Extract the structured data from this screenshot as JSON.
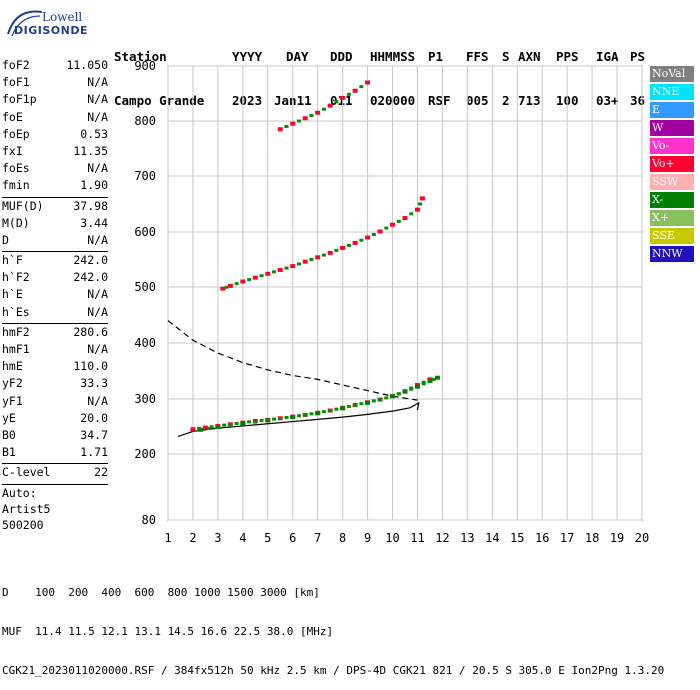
{
  "logo": {
    "line1": "Lowell",
    "line2": "DIGISONDE"
  },
  "header": {
    "labels": [
      "Station",
      "YYYY",
      "DAY",
      "DDD",
      "HHMMSS",
      "P1",
      "FFS",
      "S",
      "AXN",
      "PPS",
      "IGA",
      "PS"
    ],
    "values": [
      "Campo Grande",
      "2023",
      "Jan11",
      "011",
      "020000",
      "RSF",
      "005",
      "2",
      "713",
      "100",
      "03+",
      "36"
    ]
  },
  "params_group1": [
    {
      "k": "foF2",
      "v": "11.050"
    },
    {
      "k": "foF1",
      "v": "N/A"
    },
    {
      "k": "foF1p",
      "v": "N/A"
    },
    {
      "k": "foE",
      "v": "N/A"
    },
    {
      "k": "foEp",
      "v": "0.53"
    },
    {
      "k": "fxI",
      "v": "11.35"
    },
    {
      "k": "foEs",
      "v": "N/A"
    },
    {
      "k": "fmin",
      "v": "1.90"
    }
  ],
  "params_group2": [
    {
      "k": "MUF(D)",
      "v": "37.98"
    },
    {
      "k": "M(D)",
      "v": "3.44"
    },
    {
      "k": "D",
      "v": "N/A"
    }
  ],
  "params_group3": [
    {
      "k": "h`F",
      "v": "242.0"
    },
    {
      "k": "h`F2",
      "v": "242.0"
    },
    {
      "k": "h`E",
      "v": "N/A"
    },
    {
      "k": "h`Es",
      "v": "N/A"
    }
  ],
  "params_group4": [
    {
      "k": "hmF2",
      "v": "280.6"
    },
    {
      "k": "hmF1",
      "v": "N/A"
    },
    {
      "k": "hmE",
      "v": "110.0"
    },
    {
      "k": "yF2",
      "v": "33.3"
    },
    {
      "k": "yF1",
      "v": "N/A"
    },
    {
      "k": "yE",
      "v": "20.0"
    },
    {
      "k": "B0",
      "v": "34.7"
    },
    {
      "k": "B1",
      "v": "1.71"
    }
  ],
  "params_group5": [
    {
      "k": "C-level",
      "v": "22"
    }
  ],
  "autoscale": [
    "Auto:",
    "Artist5",
    "500200"
  ],
  "legend": [
    {
      "label": "NoVal",
      "color": "#808080"
    },
    {
      "label": "NNE",
      "color": "#00e5ff"
    },
    {
      "label": "E",
      "color": "#3399ff"
    },
    {
      "label": "W",
      "color": "#a000a0"
    },
    {
      "label": "Vo-",
      "color": "#ff33cc"
    },
    {
      "label": "Vo+",
      "color": "#ff0033"
    },
    {
      "label": "SSW",
      "color": "#ffb0b0"
    },
    {
      "label": "X-",
      "color": "#008000"
    },
    {
      "label": "X+",
      "color": "#88c060"
    },
    {
      "label": "SSE",
      "color": "#c8c800"
    },
    {
      "label": "NNW",
      "color": "#2010c0"
    }
  ],
  "footer": {
    "line1": "D    100  200  400  600  800 1000 1500 3000 [km]",
    "line2": "MUF  11.4 11.5 12.1 13.1 14.5 16.6 22.5 38.0 [MHz]",
    "line3": "CGK21_2023011020000.RSF / 384fx512h 50 kHz 2.5 km / DPS-4D CGK21 821 / 20.5 S 305.0 E Ion2Png 1.3.20"
  },
  "chart_data": {
    "type": "scatter",
    "xlim": [
      1,
      20
    ],
    "ylim": [
      80,
      900
    ],
    "xticks": [
      1,
      2,
      3,
      4,
      5,
      6,
      7,
      8,
      9,
      10,
      11,
      12,
      13,
      14,
      15,
      16,
      17,
      18,
      19,
      20
    ],
    "yticks": [
      80,
      200,
      300,
      400,
      500,
      600,
      700,
      800,
      900
    ],
    "grid": true,
    "series": [
      {
        "trace": "O-trace F",
        "color": "#ff0033",
        "x": [
          2.0,
          2.5,
          3.0,
          3.5,
          4.0,
          4.5,
          5.0,
          5.5,
          6.0,
          6.5,
          7.0,
          7.5,
          8.0,
          8.5,
          9.0,
          9.5,
          10.0,
          10.5,
          11.0,
          11.5
        ],
        "y": [
          245,
          248,
          251,
          254,
          257,
          260,
          262,
          265,
          268,
          271,
          275,
          279,
          284,
          289,
          294,
          299,
          305,
          314,
          325,
          335
        ]
      },
      {
        "trace": "X-trace F",
        "color": "#008000",
        "x": [
          2.3,
          3.0,
          4.0,
          5.0,
          6.0,
          7.0,
          8.0,
          9.0,
          10.0,
          10.5,
          11.0,
          11.5,
          11.8
        ],
        "y": [
          244,
          249,
          255,
          261,
          267,
          274,
          283,
          293,
          305,
          313,
          322,
          332,
          338
        ]
      },
      {
        "trace": "2nd hop",
        "color": "#ff0033",
        "x": [
          3.2,
          3.5,
          4.0,
          4.5,
          5.0,
          5.5,
          6.0,
          6.5,
          7.0,
          7.5,
          8.0,
          8.5,
          9.0,
          9.5,
          10.0,
          10.5,
          11.0,
          11.2
        ],
        "y": [
          497,
          502,
          510,
          517,
          524,
          531,
          538,
          546,
          554,
          562,
          571,
          580,
          590,
          601,
          613,
          625,
          640,
          660
        ]
      },
      {
        "trace": "3rd hop",
        "color": "#ff0033",
        "x": [
          5.5,
          6.0,
          6.5,
          7.0,
          7.5,
          8.0,
          8.5,
          9.0
        ],
        "y": [
          785,
          795,
          805,
          815,
          828,
          842,
          855,
          870
        ]
      }
    ],
    "profile": {
      "x": [
        1.4,
        2.0,
        3.0,
        4.0,
        5.0,
        6.0,
        7.0,
        8.0,
        9.0,
        10.0,
        10.7,
        11.05,
        11.0
      ],
      "y": [
        232,
        241,
        247,
        251,
        255,
        259,
        263,
        267,
        272,
        278,
        284,
        293,
        280
      ]
    },
    "muf_curve": {
      "x": [
        1.0,
        2.0,
        3.0,
        4.0,
        5.0,
        6.0,
        7.0,
        8.0,
        9.0,
        10.0,
        11.0
      ],
      "y": [
        440,
        405,
        382,
        365,
        352,
        342,
        335,
        325,
        315,
        305,
        298
      ]
    }
  }
}
